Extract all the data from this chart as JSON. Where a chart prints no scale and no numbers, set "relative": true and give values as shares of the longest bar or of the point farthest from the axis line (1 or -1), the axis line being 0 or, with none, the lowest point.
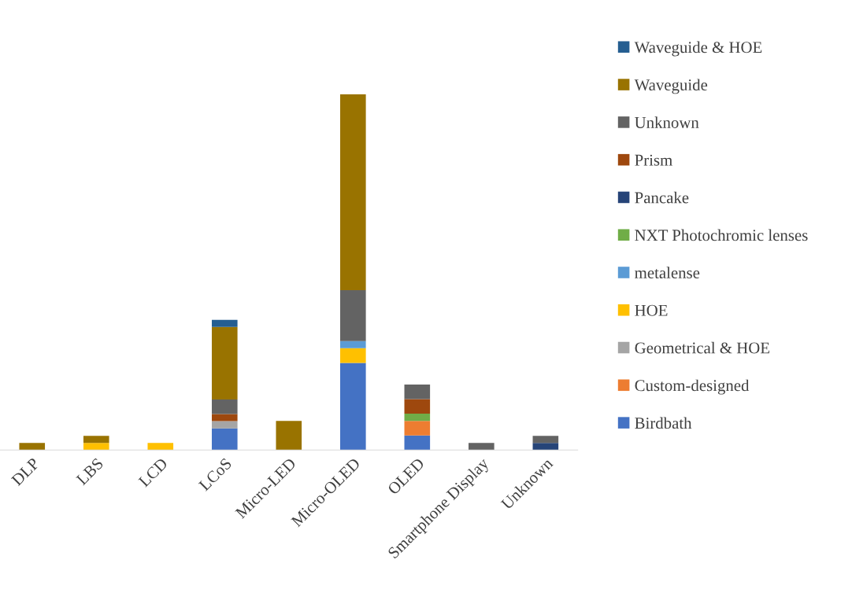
{
  "chart_data": {
    "type": "bar",
    "stacked": true,
    "relative": true,
    "legend": "right",
    "grid": false,
    "categories": [
      "DLP",
      "LBS",
      "LCD",
      "LCoS",
      "Micro-LED",
      "Micro-OLED",
      "OLED",
      "Smartphone Display",
      "Unknown"
    ],
    "series": [
      {
        "name": "Birdbath",
        "color": "#4472c4",
        "values": [
          null,
          null,
          null,
          0.061,
          null,
          0.245,
          0.041,
          null,
          null
        ]
      },
      {
        "name": "Custom-designed",
        "color": "#ed7d31",
        "values": [
          null,
          null,
          null,
          null,
          null,
          null,
          0.041,
          null,
          null
        ]
      },
      {
        "name": "Geometrical & HOE",
        "color": "#a5a5a5",
        "values": [
          null,
          null,
          null,
          0.02,
          null,
          null,
          null,
          null,
          null
        ]
      },
      {
        "name": "HOE",
        "color": "#ffc000",
        "values": [
          null,
          0.02,
          0.02,
          null,
          null,
          0.041,
          null,
          null,
          null
        ]
      },
      {
        "name": "metalense",
        "color": "#5b9bd5",
        "values": [
          null,
          null,
          null,
          null,
          null,
          0.02,
          null,
          null,
          null
        ]
      },
      {
        "name": "NXT Photochromic lenses",
        "color": "#70ad47",
        "values": [
          null,
          null,
          null,
          null,
          null,
          null,
          0.02,
          null,
          null
        ]
      },
      {
        "name": "Pancake",
        "color": "#264478",
        "values": [
          null,
          null,
          null,
          null,
          null,
          null,
          null,
          null,
          0.02
        ]
      },
      {
        "name": "Prism",
        "color": "#9e480e",
        "values": [
          null,
          null,
          null,
          0.02,
          null,
          null,
          0.041,
          null,
          null
        ]
      },
      {
        "name": "Unknown",
        "color": "#636363",
        "values": [
          null,
          null,
          null,
          0.041,
          null,
          0.143,
          0.041,
          0.02,
          0.02
        ]
      },
      {
        "name": "Waveguide",
        "color": "#997300",
        "values": [
          0.02,
          0.02,
          null,
          0.204,
          0.082,
          0.551,
          null,
          null,
          null
        ]
      },
      {
        "name": "Waveguide & HOE",
        "color": "#255e91",
        "values": [
          null,
          null,
          null,
          0.02,
          null,
          null,
          null,
          null,
          null
        ]
      }
    ]
  }
}
